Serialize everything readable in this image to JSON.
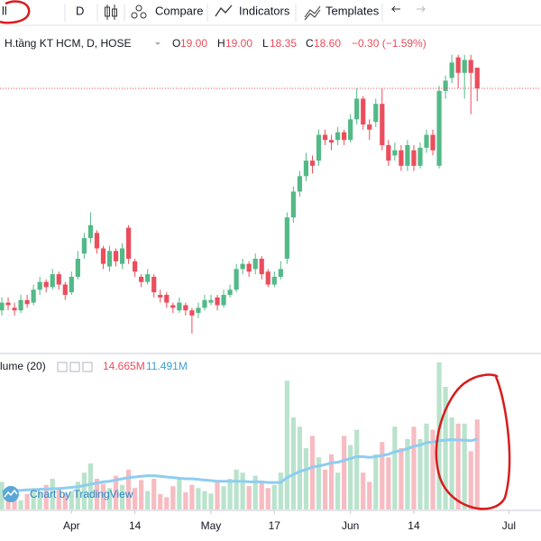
{
  "toolbar": {
    "symbol": "ll",
    "interval": "D",
    "compare": "Compare",
    "indicators": "Indicators",
    "templates": "Templates"
  },
  "chart_data": {
    "type": "candlestick",
    "title": "H.tầng KT HCM, D, HOSE",
    "ohlc_legend": {
      "o": "O",
      "o_value": "19.00",
      "h": "H",
      "h_value": "19.00",
      "l": "L",
      "l_value": "18.35",
      "c": "C",
      "c_value": "18.60",
      "change": "−0.30 (−1.59%)"
    },
    "volume_legend": {
      "name": "lume (20)",
      "volume": "14.665M",
      "ma": "11.491M"
    },
    "watermark": "Chart by TradingView",
    "categories": [
      null,
      null,
      null,
      null,
      null,
      null,
      null,
      null,
      null,
      null,
      null,
      "Apr",
      null,
      null,
      null,
      null,
      null,
      null,
      null,
      null,
      null,
      "14",
      null,
      null,
      null,
      null,
      null,
      null,
      null,
      null,
      null,
      null,
      null,
      "May",
      null,
      null,
      null,
      null,
      null,
      null,
      null,
      null,
      null,
      "17",
      null,
      null,
      null,
      null,
      null,
      null,
      null,
      null,
      null,
      null,
      null,
      "Jun",
      null,
      null,
      null,
      null,
      null,
      null,
      null,
      null,
      null,
      "14",
      null,
      null,
      null,
      null,
      null,
      null,
      null,
      null,
      null,
      null,
      null,
      null,
      null,
      null,
      "Jul"
    ],
    "open": [
      14.3,
      14.45,
      14.35,
      14.3,
      14.5,
      14.45,
      14.7,
      14.85,
      14.75,
      15.0,
      14.8,
      14.65,
      14.95,
      15.4,
      15.7,
      15.8,
      15.5,
      15.15,
      15.45,
      15.2,
      15.9,
      15.25,
      14.95,
      14.85,
      14.95,
      14.6,
      14.6,
      14.4,
      14.3,
      14.4,
      14.3,
      14.25,
      14.35,
      14.45,
      14.55,
      14.4,
      14.6,
      14.7,
      15.1,
      15.2,
      15.1,
      15.3,
      15.05,
      14.8,
      14.95,
      15.3,
      16.1,
      16.6,
      16.9,
      17.2,
      17.2,
      17.7,
      17.6,
      17.6,
      17.75,
      17.6,
      18.0,
      18.4,
      17.9,
      17.95,
      18.3,
      17.5,
      17.3,
      17.4,
      17.1,
      17.4,
      17.1,
      17.45,
      17.7,
      17.1,
      18.55,
      18.8,
      19.2,
      18.9,
      19.15,
      19.0,
      null,
      null,
      null,
      null,
      null
    ],
    "high": [
      14.55,
      14.55,
      14.45,
      14.6,
      14.6,
      14.8,
      14.95,
      14.9,
      15.1,
      15.05,
      14.85,
      15.05,
      15.45,
      15.8,
      16.2,
      15.85,
      15.55,
      15.55,
      15.5,
      15.6,
      15.95,
      15.3,
      15.0,
      15.1,
      15.0,
      14.7,
      14.65,
      14.45,
      14.55,
      14.45,
      14.35,
      14.45,
      14.6,
      14.6,
      14.6,
      14.7,
      14.8,
      15.2,
      15.3,
      15.25,
      15.4,
      15.35,
      15.1,
      15.05,
      15.25,
      16.2,
      16.7,
      17.0,
      17.35,
      17.3,
      17.8,
      17.8,
      17.7,
      17.85,
      17.8,
      18.1,
      18.6,
      18.45,
      18.0,
      18.4,
      18.6,
      17.6,
      17.55,
      17.5,
      17.6,
      17.5,
      17.55,
      17.8,
      17.8,
      18.65,
      18.85,
      19.25,
      19.25,
      19.25,
      19.25,
      19.0,
      null,
      null,
      null,
      null,
      null
    ],
    "low": [
      14.2,
      14.3,
      14.2,
      14.25,
      14.35,
      14.4,
      14.6,
      14.65,
      14.7,
      14.7,
      14.5,
      14.6,
      14.9,
      15.3,
      15.6,
      15.4,
      15.1,
      15.05,
      15.15,
      15.1,
      15.2,
      14.95,
      14.75,
      14.8,
      14.55,
      14.45,
      14.35,
      14.25,
      14.25,
      14.2,
      13.85,
      14.15,
      14.3,
      14.4,
      14.3,
      14.35,
      14.55,
      14.65,
      15.0,
      14.95,
      15.0,
      14.9,
      14.75,
      14.75,
      14.9,
      15.2,
      16.0,
      16.5,
      16.8,
      16.95,
      17.1,
      17.5,
      17.4,
      17.5,
      17.5,
      17.55,
      17.9,
      17.8,
      17.6,
      17.85,
      17.4,
      17.1,
      17.2,
      17.0,
      17.0,
      17.0,
      17.05,
      17.35,
      17.3,
      17.05,
      18.4,
      18.7,
      18.6,
      18.4,
      18.1,
      18.35,
      null,
      null,
      null,
      null,
      null
    ],
    "close": [
      14.45,
      14.4,
      14.3,
      14.5,
      14.42,
      14.7,
      14.85,
      14.75,
      15.0,
      14.8,
      14.6,
      14.95,
      15.3,
      15.7,
      15.95,
      15.5,
      15.2,
      15.45,
      15.25,
      15.5,
      15.3,
      15.05,
      14.85,
      15.0,
      14.65,
      14.55,
      14.45,
      14.35,
      14.45,
      14.3,
      14.2,
      14.35,
      14.5,
      14.5,
      14.4,
      14.6,
      14.7,
      15.1,
      15.2,
      15.05,
      15.3,
      15.0,
      14.8,
      14.95,
      15.1,
      16.1,
      16.6,
      16.9,
      17.2,
      17.1,
      17.7,
      17.6,
      17.55,
      17.75,
      17.6,
      18.0,
      18.4,
      17.9,
      17.8,
      18.3,
      17.5,
      17.2,
      17.4,
      17.1,
      17.5,
      17.1,
      17.45,
      17.7,
      17.4,
      18.55,
      18.75,
      19.1,
      18.9,
      19.15,
      18.9,
      18.6,
      null,
      null,
      null,
      null,
      null
    ],
    "volume": [
      4.5,
      2.0,
      3.0,
      1.5,
      2.5,
      3.5,
      2.8,
      4.0,
      5.0,
      3.2,
      2.6,
      3.0,
      4.5,
      6.0,
      7.5,
      5.0,
      4.2,
      3.5,
      5.5,
      4.0,
      6.5,
      3.5,
      4.8,
      3.0,
      5.0,
      2.5,
      2.0,
      3.8,
      5.2,
      2.8,
      4.0,
      3.5,
      3.0,
      2.6,
      4.5,
      3.8,
      5.0,
      6.5,
      6.0,
      3.8,
      5.5,
      4.5,
      3.5,
      4.0,
      6.0,
      21.0,
      15.0,
      13.5,
      10.0,
      12.0,
      8.5,
      6.5,
      9.0,
      6.0,
      12.0,
      10.5,
      13.0,
      6.0,
      4.5,
      9.0,
      11.0,
      8.5,
      13.5,
      10.0,
      11.5,
      13.5,
      11.5,
      14.0,
      13.0,
      24.0,
      20.0,
      15.0,
      14.0,
      14.0,
      9.5,
      14.665,
      null,
      null,
      null,
      null,
      null
    ],
    "volume_ma": [
      3.0,
      3.0,
      3.1,
      3.1,
      3.2,
      3.2,
      3.3,
      3.3,
      3.4,
      3.4,
      3.5,
      3.6,
      3.7,
      3.9,
      4.1,
      4.3,
      4.5,
      4.6,
      4.8,
      5.0,
      5.2,
      5.3,
      5.4,
      5.5,
      5.5,
      5.4,
      5.3,
      5.2,
      5.1,
      5.0,
      5.0,
      4.9,
      4.8,
      4.7,
      4.6,
      4.6,
      4.6,
      4.6,
      4.6,
      4.5,
      4.5,
      4.5,
      4.4,
      4.4,
      4.4,
      5.2,
      5.7,
      6.2,
      6.5,
      6.9,
      7.1,
      7.3,
      7.6,
      7.7,
      8.0,
      8.3,
      8.6,
      8.6,
      8.5,
      8.6,
      8.8,
      9.0,
      9.4,
      9.6,
      9.9,
      10.3,
      10.5,
      10.9,
      11.0,
      11.2,
      11.3,
      11.4,
      11.3,
      11.3,
      11.2,
      11.491,
      null,
      null,
      null,
      null,
      null
    ],
    "ylim": [
      13.5,
      19.7
    ],
    "vlim": [
      0,
      25
    ],
    "up_color": "#53b987",
    "down_color": "#eb4d5c",
    "up_volume_color": "#b9e3cc",
    "down_volume_color": "#f6bcc2",
    "ma_color": "#8fcdf0",
    "last_price_line_color": "#eb4d5c"
  }
}
